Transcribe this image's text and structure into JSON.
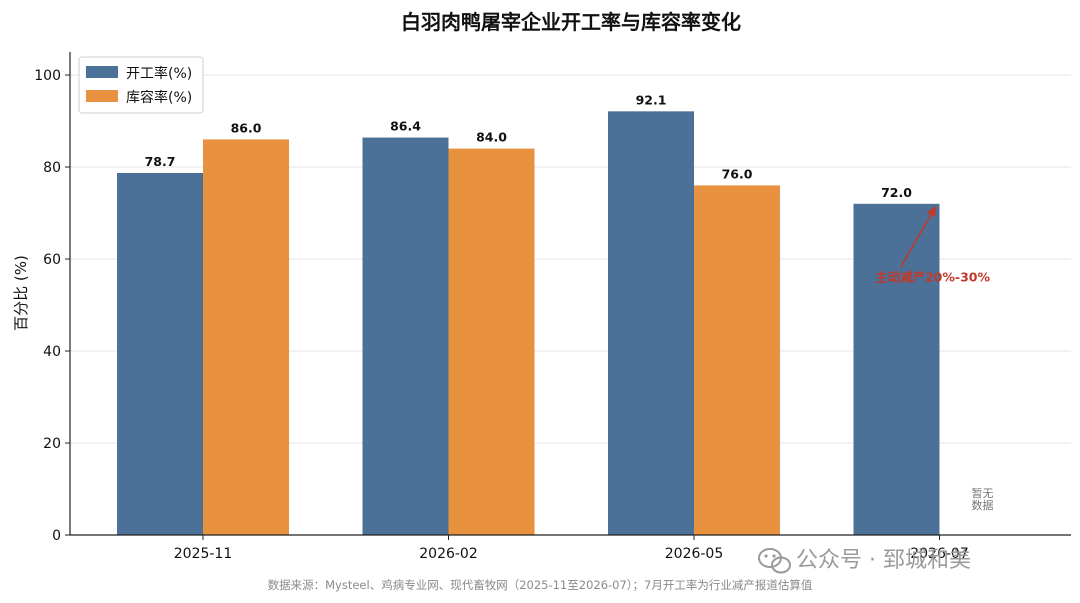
{
  "chart_data": {
    "type": "bar",
    "title": "白羽肉鸭屠宰企业开工率与库容率变化",
    "ylabel": "百分比 (%)",
    "xlabel": "",
    "categories": [
      "2025-11",
      "2026-02",
      "2026-05",
      "2026-07"
    ],
    "series": [
      {
        "name": "开工率(%)",
        "values": [
          78.7,
          86.4,
          92.1,
          72.0
        ],
        "labels": [
          "78.7",
          "86.4",
          "92.1",
          "72.0"
        ],
        "color": "#4b7198"
      },
      {
        "name": "库容率(%)",
        "values": [
          86.0,
          84.0,
          76.0,
          null
        ],
        "labels": [
          "86.0",
          "84.0",
          "76.0",
          null
        ],
        "color": "#e8913f"
      }
    ],
    "ylim": [
      0,
      105
    ],
    "yticks": [
      0,
      20,
      40,
      60,
      80,
      100
    ],
    "grid": "horizontal",
    "legend": "top-left",
    "annotations": [
      {
        "text": "主动减产20%-30%",
        "color": "#c0392b",
        "arrow_to_category": "2026-07",
        "arrow_to_value": 72.0,
        "text_at_value": 56
      }
    ],
    "no_data_note": [
      "暂无",
      "数据"
    ],
    "no_data_note_category": "2026-07",
    "source": "数据来源：Mysteel、鸡病专业网、现代畜牧网（2025-11至2026-07）；7月开工率为行业减产报道估算值",
    "watermark": "公众号 · 郅城和美"
  }
}
